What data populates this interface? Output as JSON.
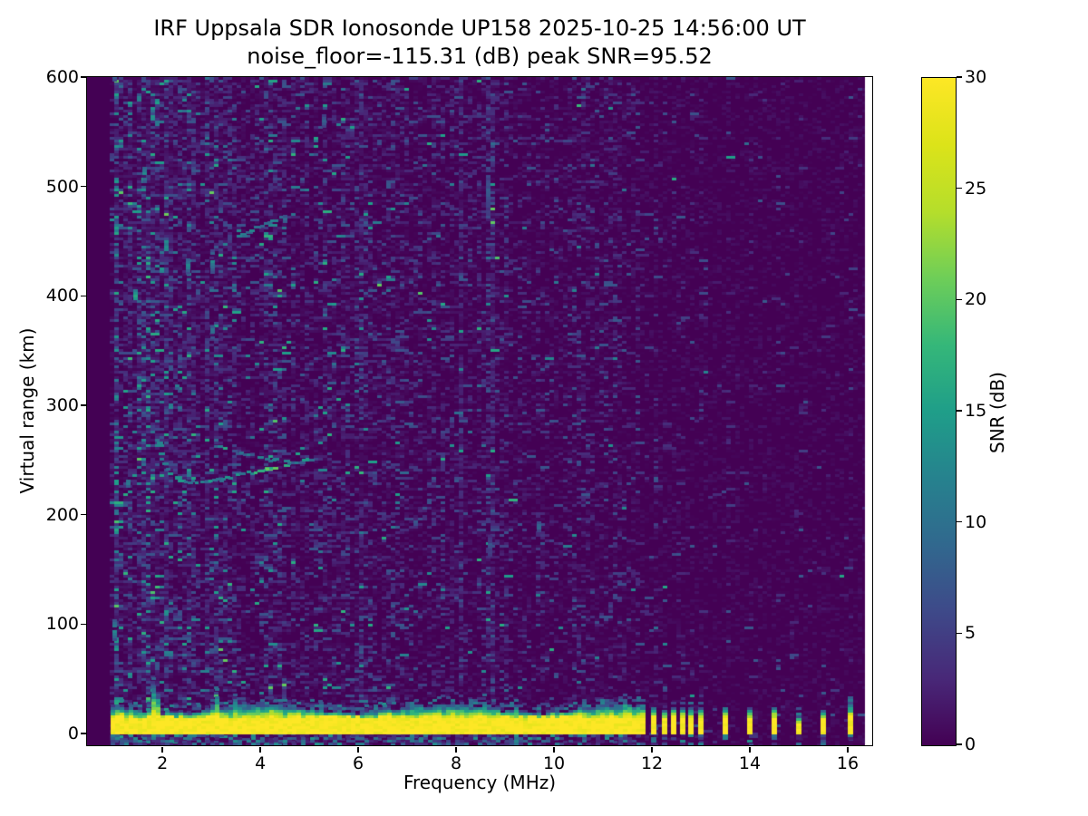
{
  "chart_data": {
    "type": "heatmap",
    "title_line1": "IRF Uppsala SDR Ionosonde UP158 2025-10-25 14:56:00  UT",
    "title_line2": "noise_floor=-115.31 (dB) peak SNR=95.52",
    "meta": {
      "station": "UP158",
      "timestamp_ut": "2025-10-25 14:56:00",
      "noise_floor_db": -115.31,
      "peak_snr_db": 95.52
    },
    "xlabel": "Frequency (MHz)",
    "ylabel": "Virtual range (km)",
    "xlim": [
      0.46,
      16.5
    ],
    "ylim": [
      -10.8,
      600
    ],
    "x_ticks": [
      2,
      4,
      6,
      8,
      10,
      12,
      14,
      16
    ],
    "y_ticks": [
      0,
      100,
      200,
      300,
      400,
      500,
      600
    ],
    "grid": false,
    "colorbar": {
      "label": "SNR (dB)",
      "ticks": [
        0,
        5,
        10,
        15,
        20,
        25,
        30
      ],
      "clim": [
        0,
        30
      ],
      "colormap": "viridis",
      "colormap_stops": [
        [
          0.0,
          "#440154"
        ],
        [
          0.1,
          "#482878"
        ],
        [
          0.2,
          "#3e4989"
        ],
        [
          0.3,
          "#31688e"
        ],
        [
          0.4,
          "#26828e"
        ],
        [
          0.5,
          "#1f9e89"
        ],
        [
          0.6,
          "#35b779"
        ],
        [
          0.7,
          "#6ece58"
        ],
        [
          0.8,
          "#b5de2b"
        ],
        [
          0.9,
          "#dce319"
        ],
        [
          1.0,
          "#fde725"
        ]
      ]
    },
    "noise": {
      "f_min": 0.93,
      "data_f_max": 16.35,
      "seed": 1337
    },
    "ground_band": {
      "f_start": 0.95,
      "f_end": 11.72,
      "core_top_km": 16,
      "fringe_top_km": 24,
      "spikes": [
        {
          "f": 1.08,
          "top_km": 30
        },
        {
          "f": 1.8,
          "top_km": 50
        },
        {
          "f": 3.05,
          "top_km": 36
        },
        {
          "f": 3.45,
          "top_km": 30
        },
        {
          "f": 4.12,
          "top_km": 27
        },
        {
          "f": 8.55,
          "top_km": 28
        },
        {
          "f": 9.2,
          "top_km": 27
        },
        {
          "f": 10.9,
          "top_km": 27
        },
        {
          "f": 11.4,
          "top_km": 29
        }
      ]
    },
    "discrete_bars": [
      {
        "f": 11.82,
        "top_km": 23
      },
      {
        "f": 12.03,
        "top_km": 23
      },
      {
        "f": 12.25,
        "top_km": 22
      },
      {
        "f": 12.45,
        "top_km": 22
      },
      {
        "f": 12.62,
        "top_km": 22
      },
      {
        "f": 12.8,
        "top_km": 22
      },
      {
        "f": 13.0,
        "top_km": 23
      },
      {
        "f": 13.5,
        "top_km": 22
      },
      {
        "f": 14.0,
        "top_km": 22
      },
      {
        "f": 14.5,
        "top_km": 23
      },
      {
        "f": 15.0,
        "top_km": 14
      },
      {
        "f": 15.5,
        "top_km": 20
      },
      {
        "f": 16.05,
        "top_km": 24
      }
    ],
    "echo_traces": [
      {
        "name": "F-layer ordinary trace",
        "v_base": 9,
        "v_spread": 6,
        "gap": 0.15,
        "bright": [
          3.8,
          4.72
        ],
        "points": [
          [
            1.85,
            278
          ],
          [
            1.88,
            266
          ],
          [
            1.93,
            255
          ],
          [
            2.0,
            246
          ],
          [
            2.1,
            239
          ],
          [
            2.25,
            233
          ],
          [
            2.45,
            230
          ],
          [
            2.7,
            229
          ],
          [
            2.95,
            231
          ],
          [
            3.2,
            233
          ],
          [
            3.5,
            236
          ],
          [
            3.8,
            239
          ],
          [
            4.1,
            242
          ],
          [
            4.4,
            245
          ],
          [
            4.7,
            248
          ],
          [
            5.0,
            251
          ]
        ]
      },
      {
        "name": "F-layer upper branch",
        "v_base": 7,
        "v_spread": 5,
        "gap": 0.3,
        "points": [
          [
            3.05,
            263
          ],
          [
            3.35,
            259
          ],
          [
            3.65,
            256
          ],
          [
            3.95,
            253
          ],
          [
            4.25,
            250
          ],
          [
            4.55,
            248
          ],
          [
            4.8,
            246
          ],
          [
            4.95,
            245
          ]
        ]
      },
      {
        "name": "second-hop echo",
        "v_base": 8,
        "v_spread": 6,
        "gap": 0.25,
        "points": [
          [
            3.45,
            452
          ],
          [
            3.62,
            456
          ],
          [
            3.8,
            460
          ],
          [
            4.0,
            464
          ],
          [
            4.2,
            468
          ],
          [
            4.38,
            471
          ],
          [
            4.5,
            473
          ]
        ]
      }
    ],
    "rfi_columns": [
      {
        "f": 1.02,
        "boost": 2.6,
        "teal": 0.25
      },
      {
        "f": 1.28,
        "boost": 1.8,
        "teal": 0.12
      },
      {
        "f": 1.47,
        "boost": 1.6,
        "teal": 0.18
      },
      {
        "f": 1.62,
        "boost": 1.9,
        "teal": 0.18
      },
      {
        "f": 1.8,
        "boost": 1.7,
        "teal": 0.15
      },
      {
        "f": 2.1,
        "boost": 1.5,
        "teal": 0.1
      },
      {
        "f": 2.52,
        "boost": 1.7,
        "teal": 0.12
      },
      {
        "f": 3.02,
        "boost": 1.9,
        "teal": 0.15
      },
      {
        "f": 3.3,
        "boost": 1.4,
        "teal": 0.1
      },
      {
        "f": 4.05,
        "boost": 1.4,
        "teal": 0.08
      },
      {
        "f": 5.3,
        "boost": 1.5,
        "teal": 0.05
      },
      {
        "f": 5.62,
        "boost": 1.4,
        "teal": 0.05
      },
      {
        "f": 6.8,
        "boost": 1.3,
        "teal": 0.04
      },
      {
        "f": 7.65,
        "boost": 1.3,
        "teal": 0.04
      },
      {
        "f": 8.65,
        "boost": 2.0,
        "teal": 0.05
      },
      {
        "f": 8.95,
        "boost": 1.6,
        "teal": 0.04
      },
      {
        "f": 9.65,
        "boost": 1.5,
        "teal": 0.04
      },
      {
        "f": 10.55,
        "boost": 1.3,
        "teal": 0.03
      },
      {
        "f": 11.15,
        "boost": 1.3,
        "teal": 0.03
      },
      {
        "f": 11.82,
        "boost": 5,
        "teal": 0.04
      },
      {
        "f": 12.03,
        "boost": 9,
        "teal": 0.06
      },
      {
        "f": 12.25,
        "boost": 5,
        "teal": 0.04
      },
      {
        "f": 12.45,
        "boost": 4,
        "teal": 0.04
      },
      {
        "f": 12.62,
        "boost": 5,
        "teal": 0.04
      },
      {
        "f": 12.8,
        "boost": 4,
        "teal": 0.04
      },
      {
        "f": 13.0,
        "boost": 5,
        "teal": 0.04
      },
      {
        "f": 13.5,
        "boost": 5,
        "teal": 0.04
      },
      {
        "f": 14.0,
        "boost": 4,
        "teal": 0.04
      },
      {
        "f": 14.5,
        "boost": 5,
        "teal": 0.04
      },
      {
        "f": 15.0,
        "boost": 3,
        "teal": 0.03
      },
      {
        "f": 15.5,
        "boost": 4,
        "teal": 0.04
      },
      {
        "f": 16.05,
        "boost": 4,
        "teal": 0.05
      }
    ],
    "blobs": [
      {
        "f": 1.02,
        "km": 95,
        "len_km": 18,
        "v": 13
      },
      {
        "f": 1.02,
        "km": 610,
        "len_km": 25,
        "v": 12
      },
      {
        "f": 1.45,
        "km": 400,
        "len_km": 14,
        "v": 16
      },
      {
        "f": 1.62,
        "km": 512,
        "len_km": 14,
        "v": 13
      },
      {
        "f": 1.8,
        "km": 572,
        "len_km": 10,
        "v": 12
      },
      {
        "f": 1.3,
        "km": 230,
        "len_km": 12,
        "v": 11
      },
      {
        "f": 2.3,
        "km": 318,
        "len_km": 10,
        "v": 10
      },
      {
        "f": 2.52,
        "km": 428,
        "len_km": 14,
        "v": 12
      },
      {
        "f": 3.02,
        "km": 432,
        "len_km": 20,
        "v": 11
      },
      {
        "f": 3.02,
        "km": 368,
        "len_km": 12,
        "v": 10
      },
      {
        "f": 4.5,
        "km": 470,
        "len_km": 8,
        "v": 9
      },
      {
        "f": 5.3,
        "km": 560,
        "len_km": 10,
        "v": 8
      },
      {
        "f": 8.65,
        "km": 495,
        "len_km": 40,
        "v": 6.5
      },
      {
        "f": 8.68,
        "km": 172,
        "len_km": 18,
        "v": 5.5
      },
      {
        "f": 9.68,
        "km": 190,
        "len_km": 8,
        "v": 9
      }
    ]
  }
}
